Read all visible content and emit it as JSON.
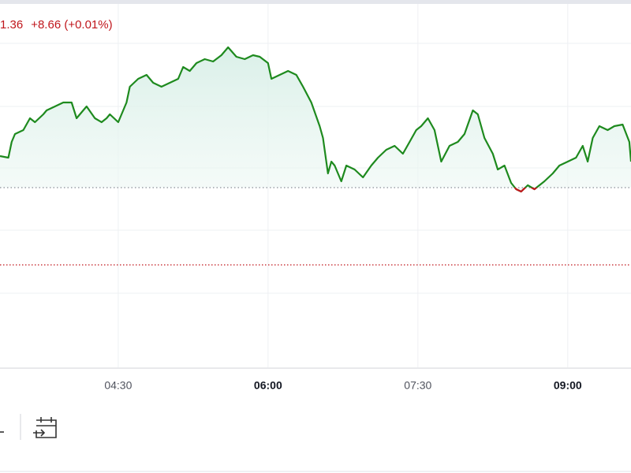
{
  "chart_data": {
    "type": "line",
    "price_label": "1.36",
    "change_label": "+8.66 (+0.01%)",
    "x": [
      199,
      204,
      206,
      208,
      213,
      217,
      220,
      225,
      227,
      232,
      237,
      242,
      245,
      249,
      251,
      256,
      260,
      263,
      265,
      270,
      275,
      277,
      282,
      287,
      291,
      296,
      301,
      306,
      309,
      313,
      317,
      322,
      327,
      332,
      336,
      341,
      346,
      351,
      355,
      360,
      362,
      367,
      372,
      377,
      381,
      386,
      391,
      393,
      396,
      398,
      400,
      404,
      407,
      412,
      417,
      422,
      426,
      431,
      436,
      441,
      445,
      449,
      452,
      456,
      460,
      464,
      469,
      474,
      478,
      483,
      486,
      490,
      495,
      498,
      502,
      506,
      509,
      512,
      516,
      520,
      523,
      526,
      531,
      535,
      540,
      545,
      549,
      552,
      555,
      559,
      564,
      568,
      573,
      577,
      578
    ],
    "series": [
      {
        "color": "#1e8a1e",
        "down_color": "#c0161c",
        "values": [
          268,
          266,
          286,
          296,
          301,
          316,
          311,
          321,
          326,
          331,
          336,
          336,
          316,
          326,
          331,
          316,
          311,
          316,
          321,
          311,
          336,
          356,
          366,
          371,
          361,
          356,
          361,
          366,
          381,
          376,
          386,
          391,
          388,
          396,
          406,
          394,
          391,
          396,
          394,
          386,
          366,
          371,
          376,
          371,
          356,
          336,
          306,
          291,
          246,
          261,
          256,
          236,
          256,
          251,
          241,
          256,
          266,
          276,
          281,
          271,
          286,
          301,
          306,
          316,
          301,
          261,
          281,
          286,
          296,
          326,
          321,
          291,
          271,
          251,
          256,
          234,
          226,
          223,
          231,
          226,
          231,
          236,
          246,
          256,
          261,
          266,
          281,
          261,
          291,
          306,
          301,
          306,
          308,
          286,
          261
        ]
      }
    ],
    "baseline": 228,
    "reference_level": 130,
    "xlim": [
      199,
      578
    ],
    "ylim": [
      0,
      466
    ],
    "xticks": [
      {
        "value": 270,
        "label": "04:30"
      },
      {
        "value": 360,
        "label": "06:00"
      },
      {
        "value": 450,
        "label": "07:30"
      },
      {
        "value": 540,
        "label": "09:00"
      }
    ],
    "bold_xticks": [
      360,
      540
    ],
    "ygrid": [
      94,
      174,
      253,
      331,
      411
    ],
    "grid": true
  }
}
